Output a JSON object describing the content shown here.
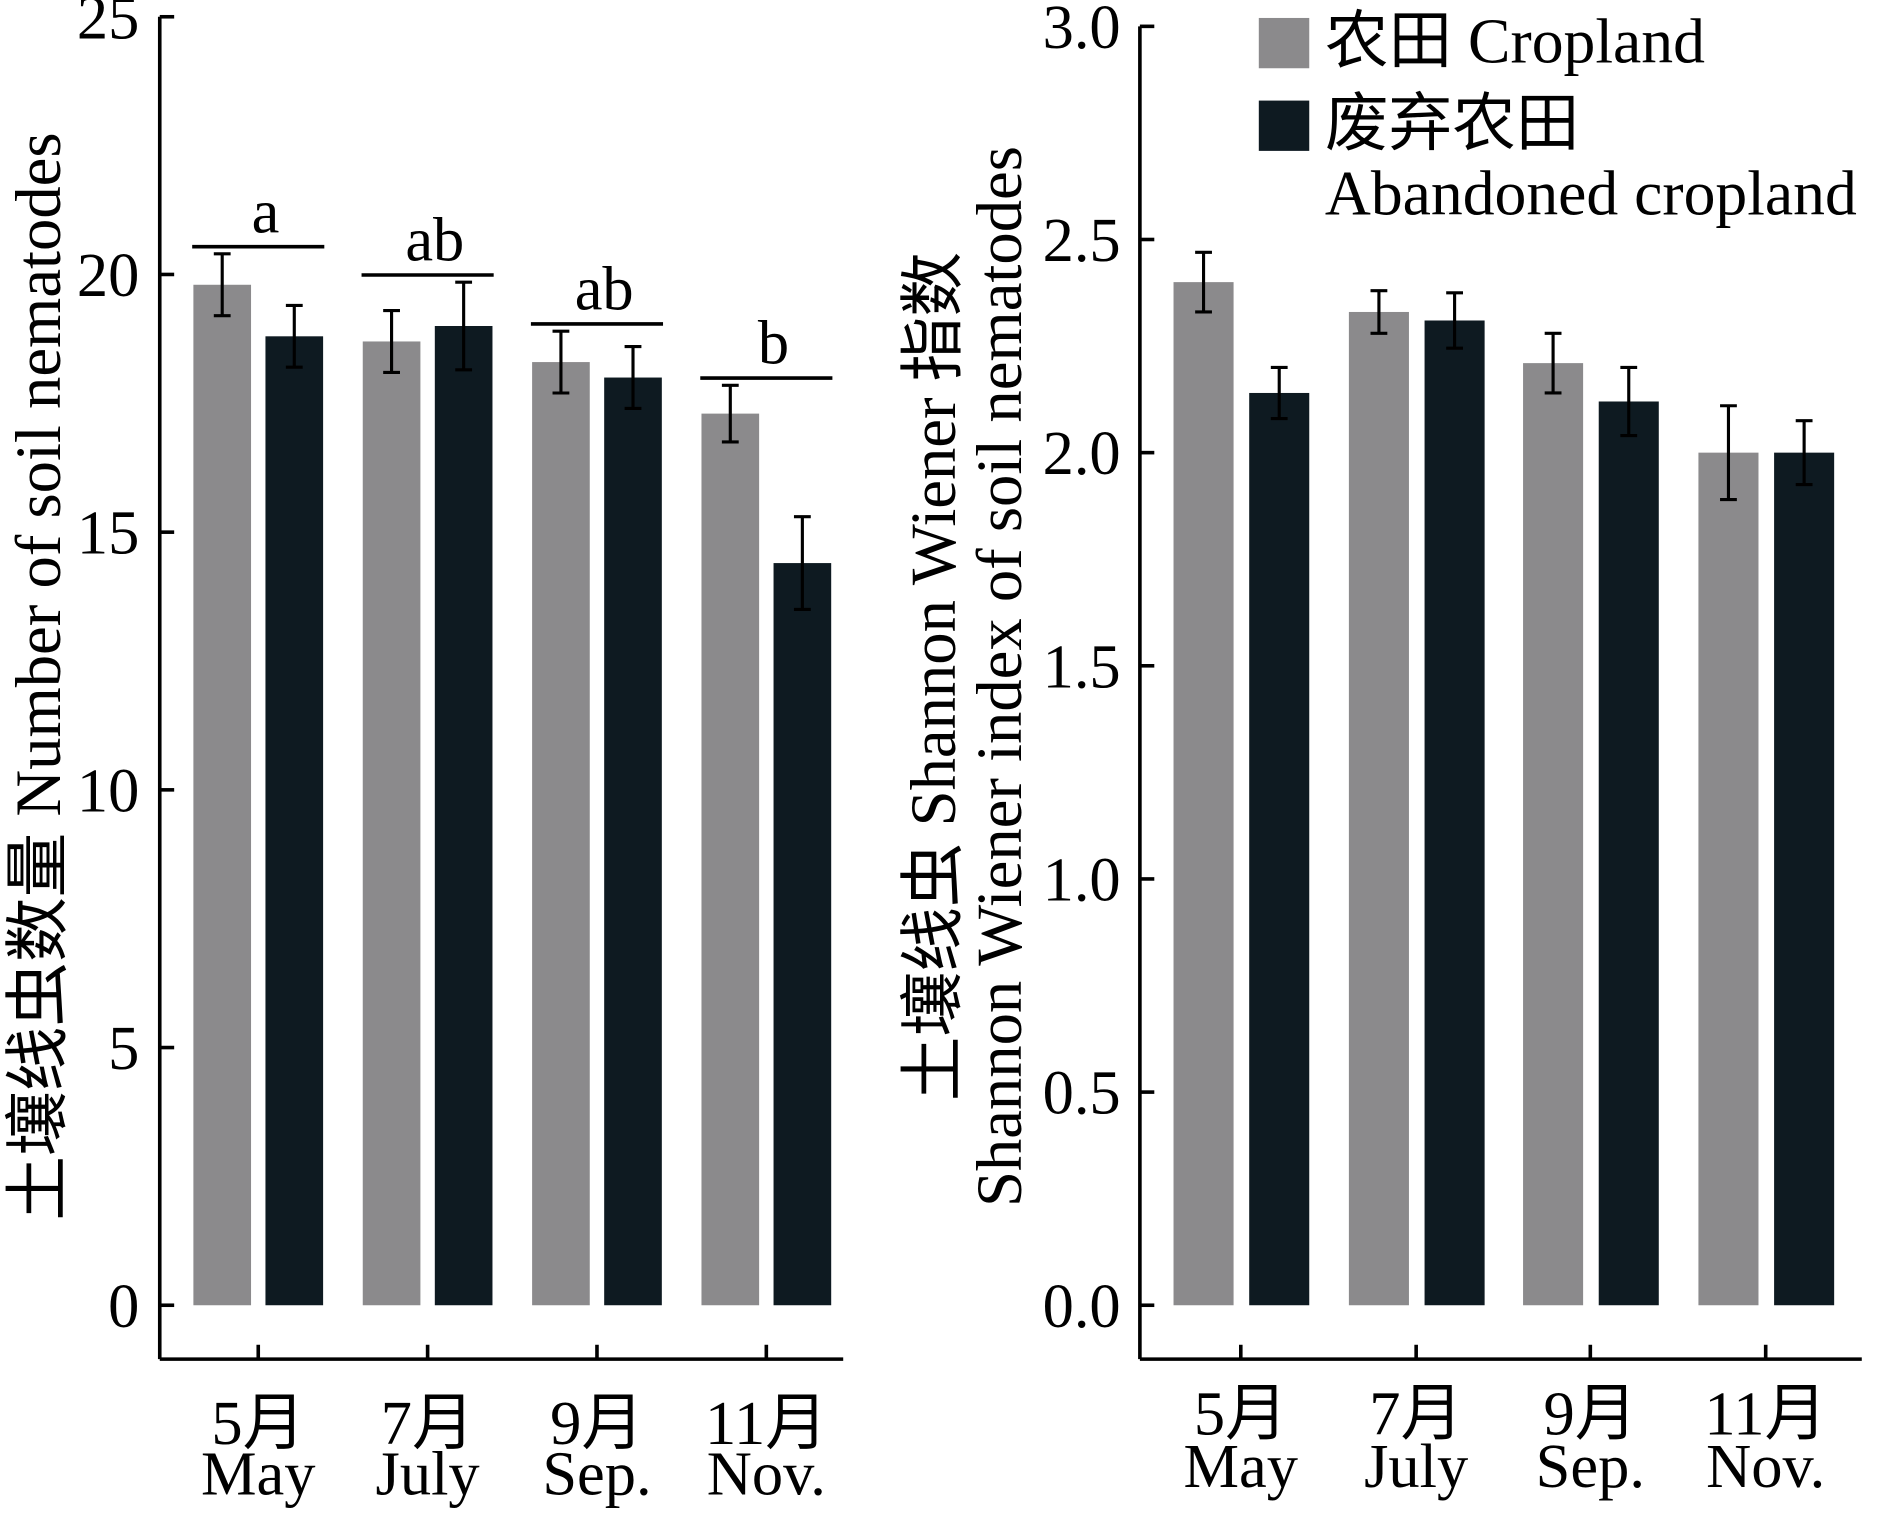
{
  "chart_data": [
    {
      "type": "bar",
      "ylabel": "土壤线虫数量 Number of soil nematodes",
      "ylim": [
        0,
        25
      ],
      "ytick_labels": [
        "0",
        "5",
        "10",
        "15",
        "20",
        "25"
      ],
      "categories": [
        {
          "zh": "5月",
          "en": "May"
        },
        {
          "zh": "7月",
          "en": "July"
        },
        {
          "zh": "9月",
          "en": "Sep."
        },
        {
          "zh": "11月",
          "en": "Nov."
        }
      ],
      "series": [
        {
          "values": [
            19.8,
            18.7,
            18.3,
            17.3
          ],
          "errors": [
            0.6,
            0.6,
            0.6,
            0.55
          ],
          "color": "#8b8a8c"
        },
        {
          "values": [
            18.8,
            19.0,
            18.0,
            14.4
          ],
          "errors": [
            0.6,
            0.85,
            0.6,
            0.9
          ],
          "color": "#0e1a21"
        }
      ],
      "significance_letters": [
        "a",
        "ab",
        "ab",
        "b"
      ],
      "grid": false
    },
    {
      "type": "bar",
      "ylabel_lines": [
        "土壤线虫 Shannon Wiener 指数",
        "Shannon Wiener index of soil nematodes"
      ],
      "ylim": [
        0,
        3
      ],
      "ytick_labels": [
        "0.0",
        "0.5",
        "1.0",
        "1.5",
        "2.0",
        "2.5",
        "3.0"
      ],
      "categories": [
        {
          "zh": "5月",
          "en": "May"
        },
        {
          "zh": "7月",
          "en": "July"
        },
        {
          "zh": "9月",
          "en": "Sep."
        },
        {
          "zh": "11月",
          "en": "Nov."
        }
      ],
      "series": [
        {
          "name_lines": [
            "农田 Cropland"
          ],
          "values": [
            2.4,
            2.33,
            2.21,
            2.0
          ],
          "errors": [
            0.07,
            0.05,
            0.07,
            0.11
          ],
          "color": "#8b8a8c"
        },
        {
          "name_lines": [
            "废弃农田",
            "Abandoned cropland"
          ],
          "values": [
            2.14,
            2.31,
            2.12,
            2.0
          ],
          "errors": [
            0.06,
            0.065,
            0.08,
            0.075
          ],
          "color": "#0e1a21"
        }
      ],
      "legend": "top-right",
      "grid": false
    }
  ]
}
